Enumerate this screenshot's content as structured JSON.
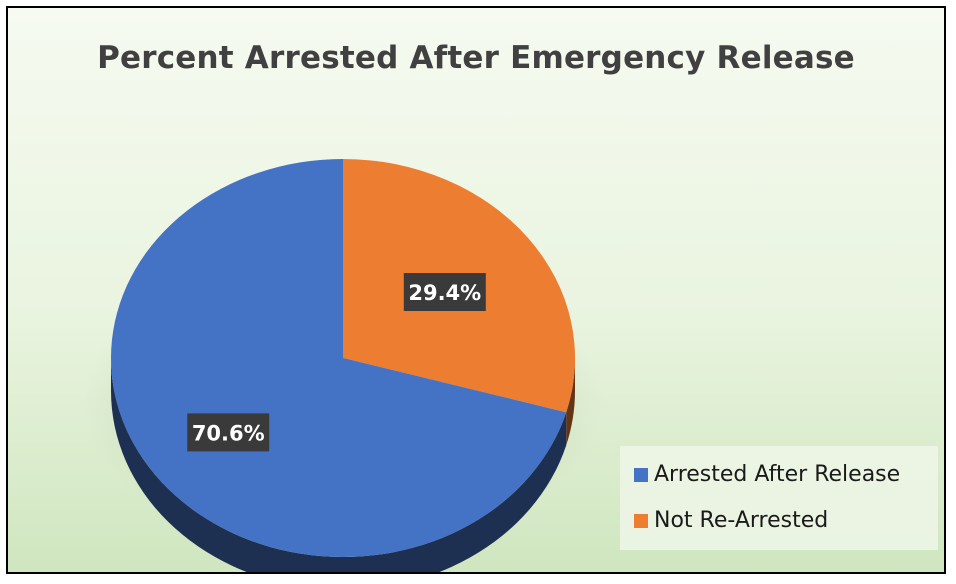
{
  "chart_data": {
    "type": "pie",
    "title": "Percent Arrested After Emergency Release",
    "slices": [
      {
        "label": "Arrested After Release",
        "value": 70.6,
        "data_label": "70.6%",
        "color": "#4472c4"
      },
      {
        "label": "Not Re-Arrested",
        "value": 29.4,
        "data_label": "29.4%",
        "color": "#ed7d31"
      }
    ],
    "legend_position": "bottom-right",
    "style": "3d"
  }
}
